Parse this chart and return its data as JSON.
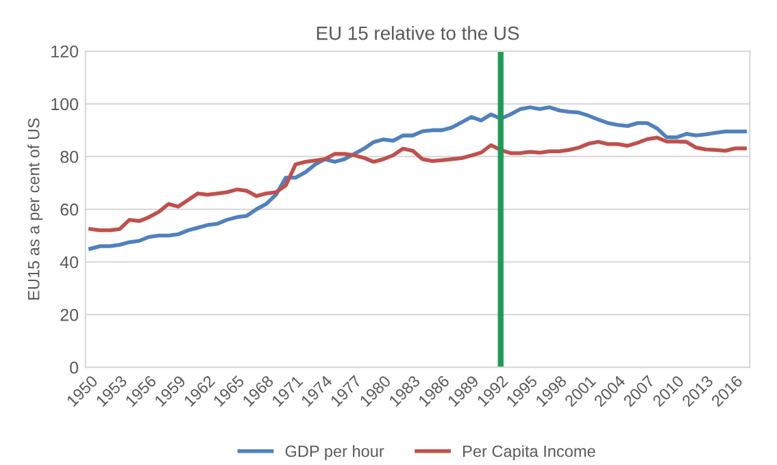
{
  "chart_data": {
    "type": "line",
    "title": "EU 15 relative to the US",
    "ylabel": "EU15 as a per cent of US",
    "categories": [
      "1950",
      null,
      null,
      "1953",
      null,
      null,
      "1956",
      null,
      null,
      "1959",
      null,
      null,
      "1962",
      null,
      null,
      "1965",
      null,
      null,
      "1968",
      null,
      null,
      "1971",
      null,
      null,
      "1974",
      null,
      null,
      "1977",
      null,
      null,
      "1980",
      null,
      null,
      "1983",
      null,
      null,
      "1986",
      null,
      null,
      "1989",
      null,
      null,
      "1992",
      null,
      null,
      "1995",
      null,
      null,
      "1998",
      null,
      null,
      "2001",
      null,
      null,
      "2004",
      null,
      null,
      "2007",
      null,
      null,
      "2010",
      null,
      null,
      "2013",
      null,
      null,
      "2016",
      null
    ],
    "series": [
      {
        "name": "GDP per hour",
        "color": "#4f81bd",
        "values": [
          45,
          46,
          46,
          46.5,
          47.5,
          48,
          49.5,
          50,
          50,
          50.5,
          52,
          53,
          54,
          54.5,
          56,
          57,
          57.5,
          60,
          62,
          65.5,
          72,
          72,
          74,
          77,
          79,
          78,
          79,
          81,
          83,
          85.5,
          86.5,
          86,
          88,
          88,
          89.6,
          90,
          90,
          91,
          93,
          95,
          93.7,
          96,
          94.4,
          96,
          98,
          98.7,
          98,
          98.7,
          97.5,
          97,
          96.7,
          95.5,
          94,
          92.7,
          92,
          91.6,
          92.7,
          92.7,
          90.7,
          87.3,
          87.3,
          88.6,
          88,
          88.4,
          89,
          89.5,
          89.5,
          89.5
        ]
      },
      {
        "name": "Per Capita Income",
        "color": "#c0504d",
        "values": [
          52.5,
          52,
          52,
          52.5,
          56,
          55.5,
          57,
          59,
          62,
          61,
          63.5,
          66,
          65.5,
          66,
          66.5,
          67.5,
          67,
          65,
          66,
          66.5,
          69,
          77,
          78,
          78.5,
          79,
          81,
          81,
          80.5,
          79.5,
          78,
          79,
          80.5,
          83,
          82.2,
          79,
          78.3,
          78.6,
          79,
          79.4,
          80.4,
          81.5,
          84.3,
          82.5,
          81.3,
          81.3,
          81.8,
          81.5,
          82,
          82,
          82.5,
          83.4,
          84.9,
          85.6,
          84.7,
          84.7,
          84.1,
          85.2,
          86.6,
          87.2,
          85.7,
          85.7,
          85.6,
          83.4,
          82.7,
          82.5,
          82.2,
          83.1,
          83.1
        ]
      }
    ],
    "ylim": [
      0,
      120
    ],
    "yticks": [
      0,
      20,
      40,
      60,
      80,
      100,
      120
    ],
    "grid": "y",
    "legend": "bottom",
    "ref_lines": [
      {
        "axis": "x",
        "value": "1992",
        "color": "#1f9a55"
      }
    ]
  }
}
